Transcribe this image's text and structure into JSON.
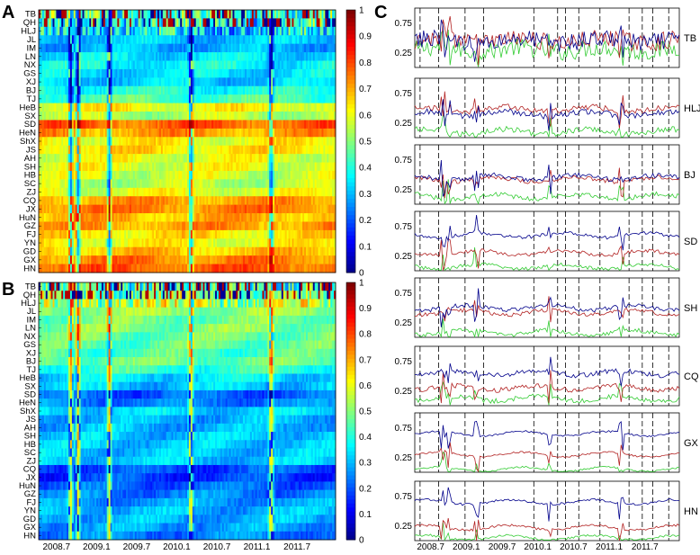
{
  "chart_data": [
    {
      "type": "heatmap",
      "panel": "A",
      "rows": [
        "TB",
        "QH",
        "HLJ",
        "JL",
        "IM",
        "LN",
        "NX",
        "GS",
        "XJ",
        "BJ",
        "TJ",
        "HeB",
        "SX",
        "SD",
        "HeN",
        "ShX",
        "JS",
        "AH",
        "SH",
        "HB",
        "SC",
        "ZJ",
        "CQ",
        "JX",
        "HuN",
        "GZ",
        "FJ",
        "YN",
        "GD",
        "GX",
        "HN"
      ],
      "xticks": [
        "2008.7",
        "2009.1",
        "2009.7",
        "2010.1",
        "2010.7",
        "2011.1",
        "2011.7"
      ],
      "row_level": [
        0.45,
        0.4,
        0.35,
        0.32,
        0.3,
        0.35,
        0.38,
        0.35,
        0.33,
        0.4,
        0.45,
        0.62,
        0.55,
        0.78,
        0.72,
        0.62,
        0.65,
        0.6,
        0.6,
        0.58,
        0.55,
        0.6,
        0.72,
        0.75,
        0.7,
        0.72,
        0.65,
        0.62,
        0.68,
        0.75,
        0.78
      ],
      "colorbar": {
        "min": 0,
        "max": 1,
        "ticks": [
          "0",
          "0.1",
          "0.2",
          "0.3",
          "0.4",
          "0.5",
          "0.6",
          "0.7",
          "0.8",
          "0.9",
          "1"
        ]
      }
    },
    {
      "type": "heatmap",
      "panel": "B",
      "rows": [
        "TB",
        "QH",
        "HLJ",
        "JL",
        "IM",
        "LN",
        "NX",
        "GS",
        "XJ",
        "BJ",
        "TJ",
        "HeB",
        "SX",
        "SD",
        "HeN",
        "ShX",
        "JS",
        "AH",
        "SH",
        "HB",
        "SC",
        "ZJ",
        "CQ",
        "JX",
        "HuN",
        "GZ",
        "FJ",
        "YN",
        "GD",
        "GX",
        "HN"
      ],
      "xticks": [
        "2008.7",
        "2009.1",
        "2009.7",
        "2010.1",
        "2010.7",
        "2011.1",
        "2011.7"
      ],
      "row_level": [
        0.45,
        0.5,
        0.55,
        0.52,
        0.48,
        0.5,
        0.48,
        0.47,
        0.45,
        0.48,
        0.42,
        0.35,
        0.32,
        0.22,
        0.25,
        0.33,
        0.3,
        0.3,
        0.32,
        0.32,
        0.32,
        0.32,
        0.2,
        0.18,
        0.22,
        0.25,
        0.28,
        0.3,
        0.3,
        0.28,
        0.25
      ],
      "colorbar": {
        "min": 0,
        "max": 1,
        "ticks": [
          "0",
          "0.1",
          "0.2",
          "0.3",
          "0.4",
          "0.5",
          "0.6",
          "0.7",
          "0.8",
          "0.9",
          "1"
        ]
      }
    },
    {
      "type": "line",
      "panel": "C",
      "xticks": [
        "2008.7",
        "2009.1",
        "2009.7",
        "2010.1",
        "2010.7",
        "2011.1",
        "2011.7"
      ],
      "yticks": [
        "0.25",
        "0.75"
      ],
      "ylim": [
        0,
        1
      ],
      "subplots": [
        {
          "label": "TB",
          "blue": 0.45,
          "red": 0.45,
          "green": 0.3,
          "noise": 0.3
        },
        {
          "label": "HLJ",
          "blue": 0.4,
          "red": 0.48,
          "green": 0.1,
          "noise": 0.1
        },
        {
          "label": "BJ",
          "blue": 0.45,
          "red": 0.42,
          "green": 0.13,
          "noise": 0.08
        },
        {
          "label": "SD",
          "blue": 0.6,
          "red": 0.3,
          "green": 0.07,
          "noise": 0.06
        },
        {
          "label": "SH",
          "blue": 0.5,
          "red": 0.42,
          "green": 0.08,
          "noise": 0.07
        },
        {
          "label": "CQ",
          "blue": 0.55,
          "red": 0.3,
          "green": 0.12,
          "noise": 0.08
        },
        {
          "label": "GX",
          "blue": 0.65,
          "red": 0.3,
          "green": 0.05,
          "noise": 0.03
        },
        {
          "label": "HN",
          "blue": 0.65,
          "red": 0.22,
          "green": 0.05,
          "noise": 0.04
        }
      ]
    }
  ],
  "labels": {
    "panel_a": "A",
    "panel_b": "B",
    "panel_c": "C"
  },
  "colors": {
    "blue": "#00008b",
    "red": "#b22222",
    "green": "#33cc33",
    "dash": "#000000"
  }
}
